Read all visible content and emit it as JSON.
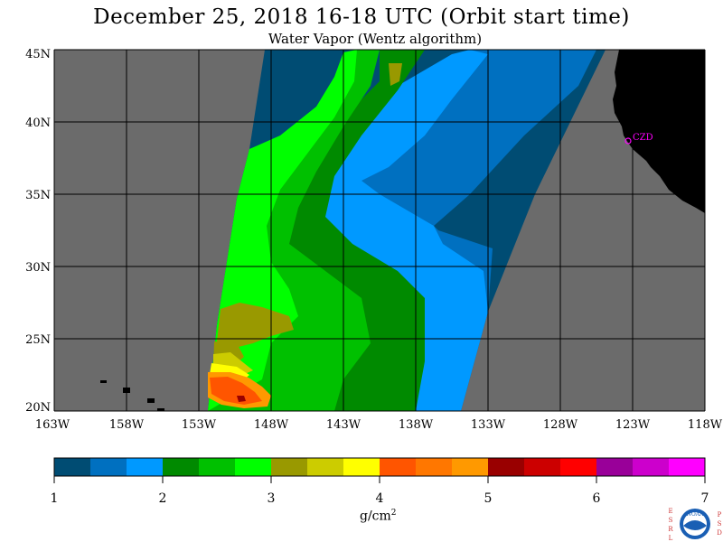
{
  "header": {
    "title": "December 25, 2018  16-18 UTC  (Orbit start time)",
    "subtitle": "Water Vapor (Wentz algorithm)"
  },
  "map": {
    "lat_labels": [
      "45N",
      "40N",
      "35N",
      "30N",
      "25N",
      "20N"
    ],
    "lon_labels": [
      "163W",
      "158W",
      "153W",
      "148W",
      "143W",
      "138W",
      "133W",
      "128W",
      "123W",
      "118W"
    ],
    "lat_range": [
      20,
      45
    ],
    "lon_range": [
      -163,
      -118
    ],
    "station_label": "CZD",
    "colors": {
      "nodata": "#6b6b6b",
      "land": "#000000",
      "grid": "#000000",
      "station": "#ff00ff"
    }
  },
  "colorbar": {
    "tick_labels": [
      "1",
      "2",
      "3",
      "4",
      "5",
      "6",
      "7"
    ],
    "unit_base": "g/cm",
    "unit_exp": "2",
    "colors": [
      "#004c73",
      "#0070c0",
      "#0099ff",
      "#008a00",
      "#00c000",
      "#00ff00",
      "#999900",
      "#cccc00",
      "#ffff00",
      "#ff5500",
      "#ff7700",
      "#ff9900",
      "#990000",
      "#cc0000",
      "#ff0000",
      "#990099",
      "#cc00cc",
      "#ff00ff"
    ]
  },
  "logo": {
    "left_letters": "ESRL",
    "right_letters": "PSD",
    "center_text": "NOAA"
  }
}
